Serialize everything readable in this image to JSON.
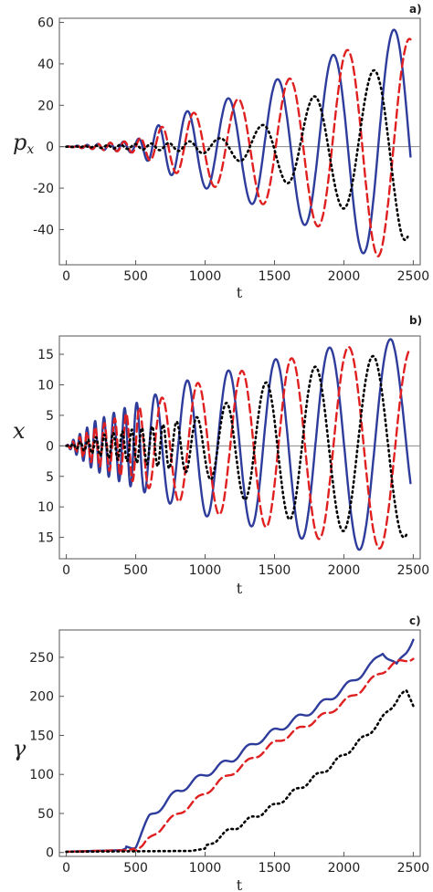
{
  "chart_data": [
    {
      "type": "line",
      "panel_label": "a)",
      "title": "",
      "xlabel": "t",
      "ylabel": "p",
      "ylabel_sub": "x",
      "xlim": [
        -50,
        2550
      ],
      "ylim": [
        -57,
        62
      ],
      "xticks": [
        0,
        500,
        1000,
        1500,
        2000,
        2500
      ],
      "yticks": [
        -40,
        -20,
        0,
        20,
        40,
        60
      ],
      "zero_line": true,
      "series": [
        {
          "color": "#2e3c9c",
          "style": "solid",
          "envelope": [
            [
              0,
              0
            ],
            [
              500,
              3
            ],
            [
              700,
              12
            ],
            [
              900,
              18
            ],
            [
              1200,
              24
            ],
            [
              1500,
              32
            ],
            [
              1800,
              40
            ],
            [
              2000,
              47
            ],
            [
              2250,
              55
            ],
            [
              2480,
              58
            ]
          ],
          "period": [
            [
              0,
              60
            ],
            [
              500,
              110
            ],
            [
              1000,
              300
            ],
            [
              1500,
              380
            ],
            [
              2000,
              430
            ],
            [
              2480,
              460
            ]
          ],
          "phase": 0,
          "xmax": 2480
        },
        {
          "color": "#e02020",
          "style": "dashed",
          "envelope": [
            [
              0,
              0
            ],
            [
              500,
              3
            ],
            [
              700,
              10
            ],
            [
              900,
              16
            ],
            [
              1200,
              22
            ],
            [
              1500,
              30
            ],
            [
              1800,
              38
            ],
            [
              2000,
              46
            ],
            [
              2250,
              53
            ],
            [
              2480,
              52
            ]
          ],
          "period": [
            [
              0,
              60
            ],
            [
              500,
              115
            ],
            [
              1000,
              310
            ],
            [
              1500,
              385
            ],
            [
              2000,
              435
            ],
            [
              2480,
              465
            ]
          ],
          "phase": 0.35,
          "xmax": 2480
        },
        {
          "color": "#000000",
          "style": "dotted",
          "envelope": [
            [
              0,
              0
            ],
            [
              800,
              2
            ],
            [
              1100,
              4
            ],
            [
              1400,
              10
            ],
            [
              1700,
              22
            ],
            [
              2000,
              30
            ],
            [
              2250,
              38
            ],
            [
              2420,
              45
            ]
          ],
          "period": [
            [
              0,
              60
            ],
            [
              800,
              140
            ],
            [
              1200,
              300
            ],
            [
              1700,
              400
            ],
            [
              2200,
              450
            ],
            [
              2460,
              460
            ]
          ],
          "phase": 1.3,
          "xmax": 2460
        }
      ]
    },
    {
      "type": "line",
      "panel_label": "b)",
      "title": "",
      "xlabel": "t",
      "ylabel": "x",
      "ylabel_sub": "",
      "xlim": [
        -50,
        2550
      ],
      "ylim": [
        -18.5,
        18
      ],
      "xticks": [
        0,
        500,
        1000,
        1500,
        2000,
        2500
      ],
      "xtick_labels": [
        "0",
        "500",
        "1000",
        "1500",
        "2000",
        "2500"
      ],
      "yticks": [
        -15,
        -10,
        -5,
        0,
        5,
        10,
        15
      ],
      "ytick_labels": [
        "15",
        "10",
        "5",
        "0",
        "5",
        "10",
        "15"
      ],
      "zero_line": true,
      "series": [
        {
          "color": "#2e3c9c",
          "style": "solid",
          "envelope": [
            [
              0,
              0
            ],
            [
              200,
              4
            ],
            [
              500,
              7
            ],
            [
              700,
              9
            ],
            [
              900,
              11
            ],
            [
              1300,
              13
            ],
            [
              1650,
              15
            ],
            [
              2100,
              17
            ],
            [
              2350,
              17.5
            ],
            [
              2480,
              16
            ]
          ],
          "period": [
            [
              0,
              40
            ],
            [
              500,
              90
            ],
            [
              700,
              220
            ],
            [
              1000,
              300
            ],
            [
              1500,
              360
            ],
            [
              2000,
              430
            ],
            [
              2480,
              470
            ]
          ],
          "phase": 0.2,
          "xmax": 2480
        },
        {
          "color": "#e02020",
          "style": "dashed",
          "envelope": [
            [
              0,
              0
            ],
            [
              200,
              3
            ],
            [
              500,
              6
            ],
            [
              700,
              8
            ],
            [
              900,
              10
            ],
            [
              1300,
              12.5
            ],
            [
              1650,
              14.5
            ],
            [
              2100,
              16.5
            ],
            [
              2350,
              17
            ],
            [
              2470,
              16
            ]
          ],
          "period": [
            [
              0,
              40
            ],
            [
              500,
              95
            ],
            [
              700,
              230
            ],
            [
              1000,
              305
            ],
            [
              1500,
              365
            ],
            [
              2000,
              435
            ],
            [
              2470,
              470
            ]
          ],
          "phase": 0.6,
          "xmax": 2470
        },
        {
          "color": "#000000",
          "style": "dotted",
          "envelope": [
            [
              0,
              0
            ],
            [
              300,
              2
            ],
            [
              700,
              3.5
            ],
            [
              1000,
              5
            ],
            [
              1300,
              9
            ],
            [
              1600,
              12
            ],
            [
              2000,
              14
            ],
            [
              2300,
              15
            ],
            [
              2450,
              15
            ]
          ],
          "period": [
            [
              0,
              50
            ],
            [
              700,
              80
            ],
            [
              1000,
              200
            ],
            [
              1400,
              320
            ],
            [
              2000,
              420
            ],
            [
              2450,
              460
            ]
          ],
          "phase": 1.8,
          "xmax": 2450
        }
      ]
    },
    {
      "type": "line",
      "panel_label": "c)",
      "title": "",
      "xlabel": "t",
      "ylabel": "γ",
      "ylabel_sub": "",
      "xlim": [
        -50,
        2550
      ],
      "ylim": [
        -5,
        285
      ],
      "xticks": [
        0,
        500,
        1000,
        1500,
        2000,
        2500
      ],
      "yticks": [
        0,
        50,
        100,
        150,
        200,
        250
      ],
      "zero_line": false,
      "series": [
        {
          "color": "#2e3c9c",
          "style": "solid",
          "trend": [
            [
              0,
              1
            ],
            [
              400,
              3
            ],
            [
              500,
              10
            ],
            [
              600,
              45
            ],
            [
              800,
              78
            ],
            [
              1000,
              100
            ],
            [
              1200,
              120
            ],
            [
              1400,
              145
            ],
            [
              1600,
              165
            ],
            [
              1800,
              185
            ],
            [
              2000,
              210
            ],
            [
              2200,
              240
            ],
            [
              2280,
              258
            ],
            [
              2380,
              238
            ],
            [
              2450,
              258
            ],
            [
              2500,
              275
            ]
          ],
          "ripple": 4,
          "period": 180,
          "xmax": 2500
        },
        {
          "color": "#e02020",
          "style": "dashed",
          "trend": [
            [
              0,
              1
            ],
            [
              450,
              3
            ],
            [
              550,
              8
            ],
            [
              700,
              35
            ],
            [
              900,
              62
            ],
            [
              1100,
              90
            ],
            [
              1300,
              115
            ],
            [
              1500,
              140
            ],
            [
              1700,
              160
            ],
            [
              1900,
              180
            ],
            [
              2100,
              205
            ],
            [
              2260,
              230
            ],
            [
              2350,
              240
            ],
            [
              2450,
              247
            ],
            [
              2500,
              250
            ]
          ],
          "ripple": 3,
          "period": 180,
          "xmax": 2500
        },
        {
          "color": "#000000",
          "style": "dotted",
          "trend": [
            [
              0,
              1
            ],
            [
              900,
              2
            ],
            [
              1000,
              5
            ],
            [
              1100,
              20
            ],
            [
              1300,
              40
            ],
            [
              1500,
              60
            ],
            [
              1700,
              85
            ],
            [
              1900,
              110
            ],
            [
              2100,
              140
            ],
            [
              2250,
              165
            ],
            [
              2400,
              200
            ],
            [
              2450,
              205
            ],
            [
              2500,
              190
            ]
          ],
          "ripple": 3,
          "period": 160,
          "xmax": 2500
        }
      ]
    }
  ]
}
